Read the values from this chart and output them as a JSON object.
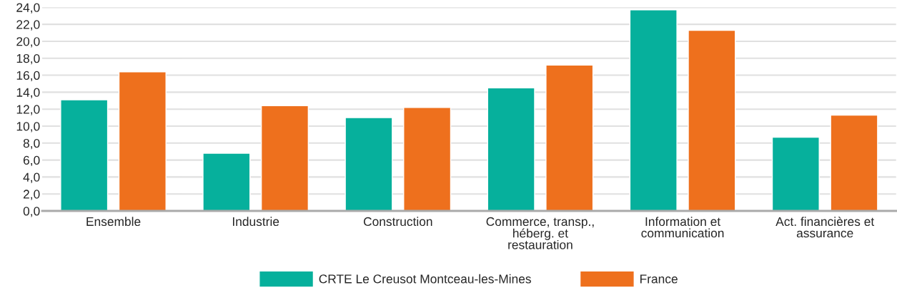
{
  "chart_data": {
    "type": "bar",
    "categories": [
      "Ensemble",
      "Industrie",
      "Construction",
      "Commerce, transp.,\nhéberg. et\nrestauration",
      "Information et\ncommunication",
      "Act. financières et\nassurance"
    ],
    "series": [
      {
        "name": "CRTE Le Creusot Montceau-les-Mines",
        "color": "#06b09c",
        "values": [
          13.1,
          6.8,
          11.0,
          14.5,
          23.7,
          8.7
        ]
      },
      {
        "name": "France",
        "color": "#ee701d",
        "values": [
          16.4,
          12.4,
          12.2,
          17.2,
          21.3,
          11.3
        ]
      }
    ],
    "ylim": [
      0,
      24
    ],
    "yticks": [
      {
        "value": 0,
        "label": "0,0"
      },
      {
        "value": 2,
        "label": "2,0"
      },
      {
        "value": 4,
        "label": "4,0"
      },
      {
        "value": 6,
        "label": "6,0"
      },
      {
        "value": 8,
        "label": "8,0"
      },
      {
        "value": 10,
        "label": "10,0"
      },
      {
        "value": 12,
        "label": "12,0"
      },
      {
        "value": 14,
        "label": "14,0"
      },
      {
        "value": 16,
        "label": "16,0"
      },
      {
        "value": 18,
        "label": "18,0"
      },
      {
        "value": 20,
        "label": "20,0"
      },
      {
        "value": 22,
        "label": "22,0"
      },
      {
        "value": 24,
        "label": "24,0"
      }
    ],
    "grid": "y",
    "legend": "bottom"
  }
}
